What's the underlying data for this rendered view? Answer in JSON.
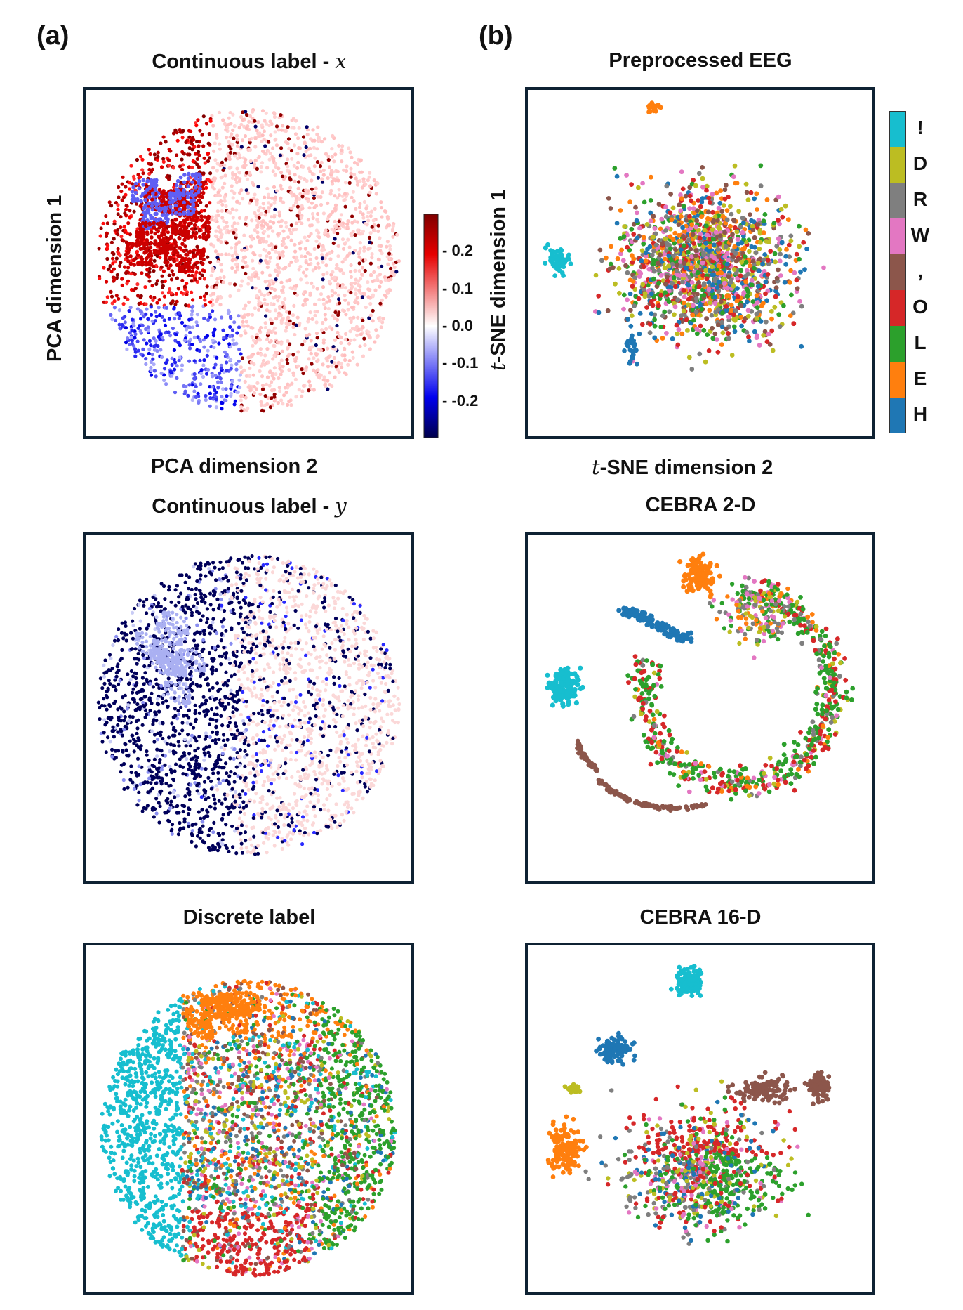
{
  "panel_a_label": "(a)",
  "panel_b_label": "(b)",
  "chart_data": [
    {
      "id": "pca_x",
      "type": "scatter",
      "title_text": "Continuous label - ",
      "title_var": "x",
      "xlabel": "PCA dimension 2",
      "ylabel": "PCA dimension 1",
      "color_by": "continuous label x",
      "colorbar": {
        "cmap": "seismic",
        "range": [
          -0.3,
          0.3
        ],
        "ticks": [
          "0.2",
          "0.1",
          "0.0",
          "-0.1",
          "-0.2"
        ],
        "tick_values": [
          0.2,
          0.1,
          0.0,
          -0.1,
          -0.2
        ]
      }
    },
    {
      "id": "pca_y",
      "type": "scatter",
      "title_text": "Continuous label - ",
      "title_var": "y",
      "color_by": "continuous label y"
    },
    {
      "id": "pca_discrete",
      "type": "scatter",
      "title": "Discrete label",
      "color_by": "character class"
    },
    {
      "id": "tsne_eeg",
      "type": "scatter",
      "title": "Preprocessed EEG",
      "xlabel_var": "t",
      "xlabel_text": "-SNE dimension 2",
      "ylabel_var": "t",
      "ylabel_text": "-SNE dimension 1",
      "color_by": "character class"
    },
    {
      "id": "cebra2",
      "type": "scatter",
      "title": "CEBRA 2-D",
      "color_by": "character class"
    },
    {
      "id": "cebra16",
      "type": "scatter",
      "title": "CEBRA 16-D",
      "color_by": "character class"
    }
  ],
  "legend": {
    "classes": [
      {
        "label": "!",
        "color": "#17becf"
      },
      {
        "label": "D",
        "color": "#bcbd22"
      },
      {
        "label": "R",
        "color": "#7f7f7f"
      },
      {
        "label": "W",
        "color": "#e377c2"
      },
      {
        "label": ",",
        "color": "#8c564b"
      },
      {
        "label": "O",
        "color": "#d62728"
      },
      {
        "label": "L",
        "color": "#2ca02c"
      },
      {
        "label": "E",
        "color": "#ff7f0e"
      },
      {
        "label": "H",
        "color": "#1f77b4"
      }
    ]
  }
}
